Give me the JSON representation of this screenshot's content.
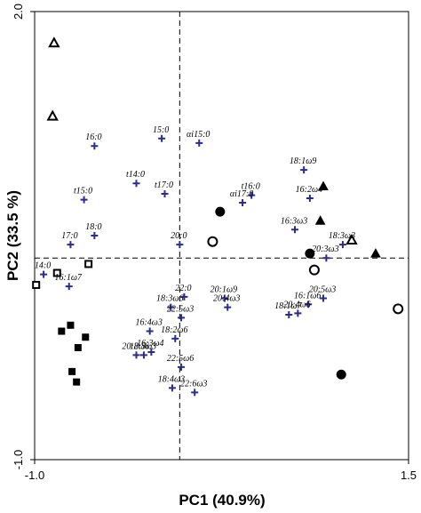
{
  "chart_data": {
    "type": "scatter",
    "title": "",
    "xlabel": "PC1 (40.9%)",
    "ylabel": "PC2 (33.5 %)",
    "xlim": [
      -1.0,
      1.5
    ],
    "ylim": [
      -1.0,
      2.0
    ],
    "x_tick_labels": [
      {
        "value": -1.0,
        "label": "-1.0"
      },
      {
        "value": 1.5,
        "label": "1.5"
      }
    ],
    "y_tick_labels": [
      {
        "value": 2.0,
        "label": "2.0"
      },
      {
        "value": -1.0,
        "label": "-1.0"
      }
    ],
    "reference_lines": {
      "x": -0.03,
      "y": 0.35
    },
    "grid": false,
    "colors": {
      "loading_marker": "#2b2b8c",
      "sample_marker": "#000000",
      "axes": "#000000"
    },
    "variables": [
      {
        "label": "15:0",
        "x": -0.15,
        "y": 1.15
      },
      {
        "label": "αi15:0",
        "x": 0.1,
        "y": 1.12
      },
      {
        "label": "16:0",
        "x": -0.6,
        "y": 1.1
      },
      {
        "label": "18:1ω9",
        "x": 0.8,
        "y": 0.94
      },
      {
        "label": "t14:0",
        "x": -0.32,
        "y": 0.85
      },
      {
        "label": "t17:0",
        "x": -0.13,
        "y": 0.78
      },
      {
        "label": "t16:0",
        "x": 0.45,
        "y": 0.77
      },
      {
        "label": "t15:0",
        "x": -0.67,
        "y": 0.74
      },
      {
        "label": "16:2ω4",
        "x": 0.84,
        "y": 0.75
      },
      {
        "label": "αi17:0",
        "x": 0.39,
        "y": 0.72
      },
      {
        "label": "16:3ω3",
        "x": 0.74,
        "y": 0.54
      },
      {
        "label": "18:0",
        "x": -0.6,
        "y": 0.5
      },
      {
        "label": "17:0",
        "x": -0.76,
        "y": 0.44
      },
      {
        "label": "20:0",
        "x": -0.03,
        "y": 0.44
      },
      {
        "label": "18:3ω3",
        "x": 1.06,
        "y": 0.44
      },
      {
        "label": "20:3ω3",
        "x": 0.95,
        "y": 0.35
      },
      {
        "label": "14:0",
        "x": -0.94,
        "y": 0.24
      },
      {
        "label": "16:1ω7",
        "x": -0.77,
        "y": 0.16
      },
      {
        "label": "22:0",
        "x": 0.0,
        "y": 0.09
      },
      {
        "label": "20:1ω9",
        "x": 0.27,
        "y": 0.08
      },
      {
        "label": "20:5ω3",
        "x": 0.93,
        "y": 0.08
      },
      {
        "label": "16:1ω6",
        "x": 0.83,
        "y": 0.04
      },
      {
        "label": "18:3ω6",
        "x": -0.09,
        "y": 0.02
      },
      {
        "label": "20:4ω3",
        "x": 0.29,
        "y": 0.02
      },
      {
        "label": "20:4ω6",
        "x": 0.76,
        "y": -0.02
      },
      {
        "label": "18:1ω7",
        "x": 0.7,
        "y": -0.03
      },
      {
        "label": "22:5ω3",
        "x": -0.02,
        "y": -0.05
      },
      {
        "label": "16:4ω3",
        "x": -0.23,
        "y": -0.14
      },
      {
        "label": "18:2ω6",
        "x": -0.06,
        "y": -0.19
      },
      {
        "label": "16:3ω4",
        "x": -0.22,
        "y": -0.28
      },
      {
        "label": "20:2ω6",
        "x": -0.32,
        "y": -0.3
      },
      {
        "label": "18:5ω3",
        "x": -0.27,
        "y": -0.3
      },
      {
        "label": "22:5ω6",
        "x": -0.02,
        "y": -0.38
      },
      {
        "label": "18:4ω3",
        "x": -0.08,
        "y": -0.52
      },
      {
        "label": "22:6ω3",
        "x": 0.07,
        "y": -0.55
      }
    ],
    "samples": [
      {
        "shape": "triangle",
        "filled": false,
        "x": -0.87,
        "y": 1.79
      },
      {
        "shape": "triangle",
        "filled": false,
        "x": -0.88,
        "y": 1.3
      },
      {
        "shape": "triangle",
        "filled": true,
        "x": 0.93,
        "y": 0.83
      },
      {
        "shape": "triangle",
        "filled": true,
        "x": 0.91,
        "y": 0.6
      },
      {
        "shape": "triangle",
        "filled": false,
        "x": 1.12,
        "y": 0.47
      },
      {
        "shape": "triangle",
        "filled": true,
        "x": 1.28,
        "y": 0.38
      },
      {
        "shape": "circle",
        "filled": true,
        "x": 0.24,
        "y": 0.66
      },
      {
        "shape": "circle",
        "filled": false,
        "x": 0.19,
        "y": 0.46
      },
      {
        "shape": "circle",
        "filled": true,
        "x": 0.84,
        "y": 0.38
      },
      {
        "shape": "circle",
        "filled": false,
        "x": 0.87,
        "y": 0.27
      },
      {
        "shape": "circle",
        "filled": false,
        "x": 1.43,
        "y": 0.01
      },
      {
        "shape": "circle",
        "filled": true,
        "x": 1.05,
        "y": -0.43
      },
      {
        "shape": "square",
        "filled": false,
        "x": -0.64,
        "y": 0.31
      },
      {
        "shape": "square",
        "filled": false,
        "x": -0.85,
        "y": 0.25
      },
      {
        "shape": "square",
        "filled": false,
        "x": -0.99,
        "y": 0.17
      },
      {
        "shape": "square",
        "filled": true,
        "x": -0.76,
        "y": -0.1
      },
      {
        "shape": "square",
        "filled": true,
        "x": -0.82,
        "y": -0.14
      },
      {
        "shape": "square",
        "filled": true,
        "x": -0.66,
        "y": -0.18
      },
      {
        "shape": "square",
        "filled": true,
        "x": -0.71,
        "y": -0.25
      },
      {
        "shape": "square",
        "filled": true,
        "x": -0.75,
        "y": -0.41
      },
      {
        "shape": "square",
        "filled": true,
        "x": -0.72,
        "y": -0.48
      }
    ]
  }
}
